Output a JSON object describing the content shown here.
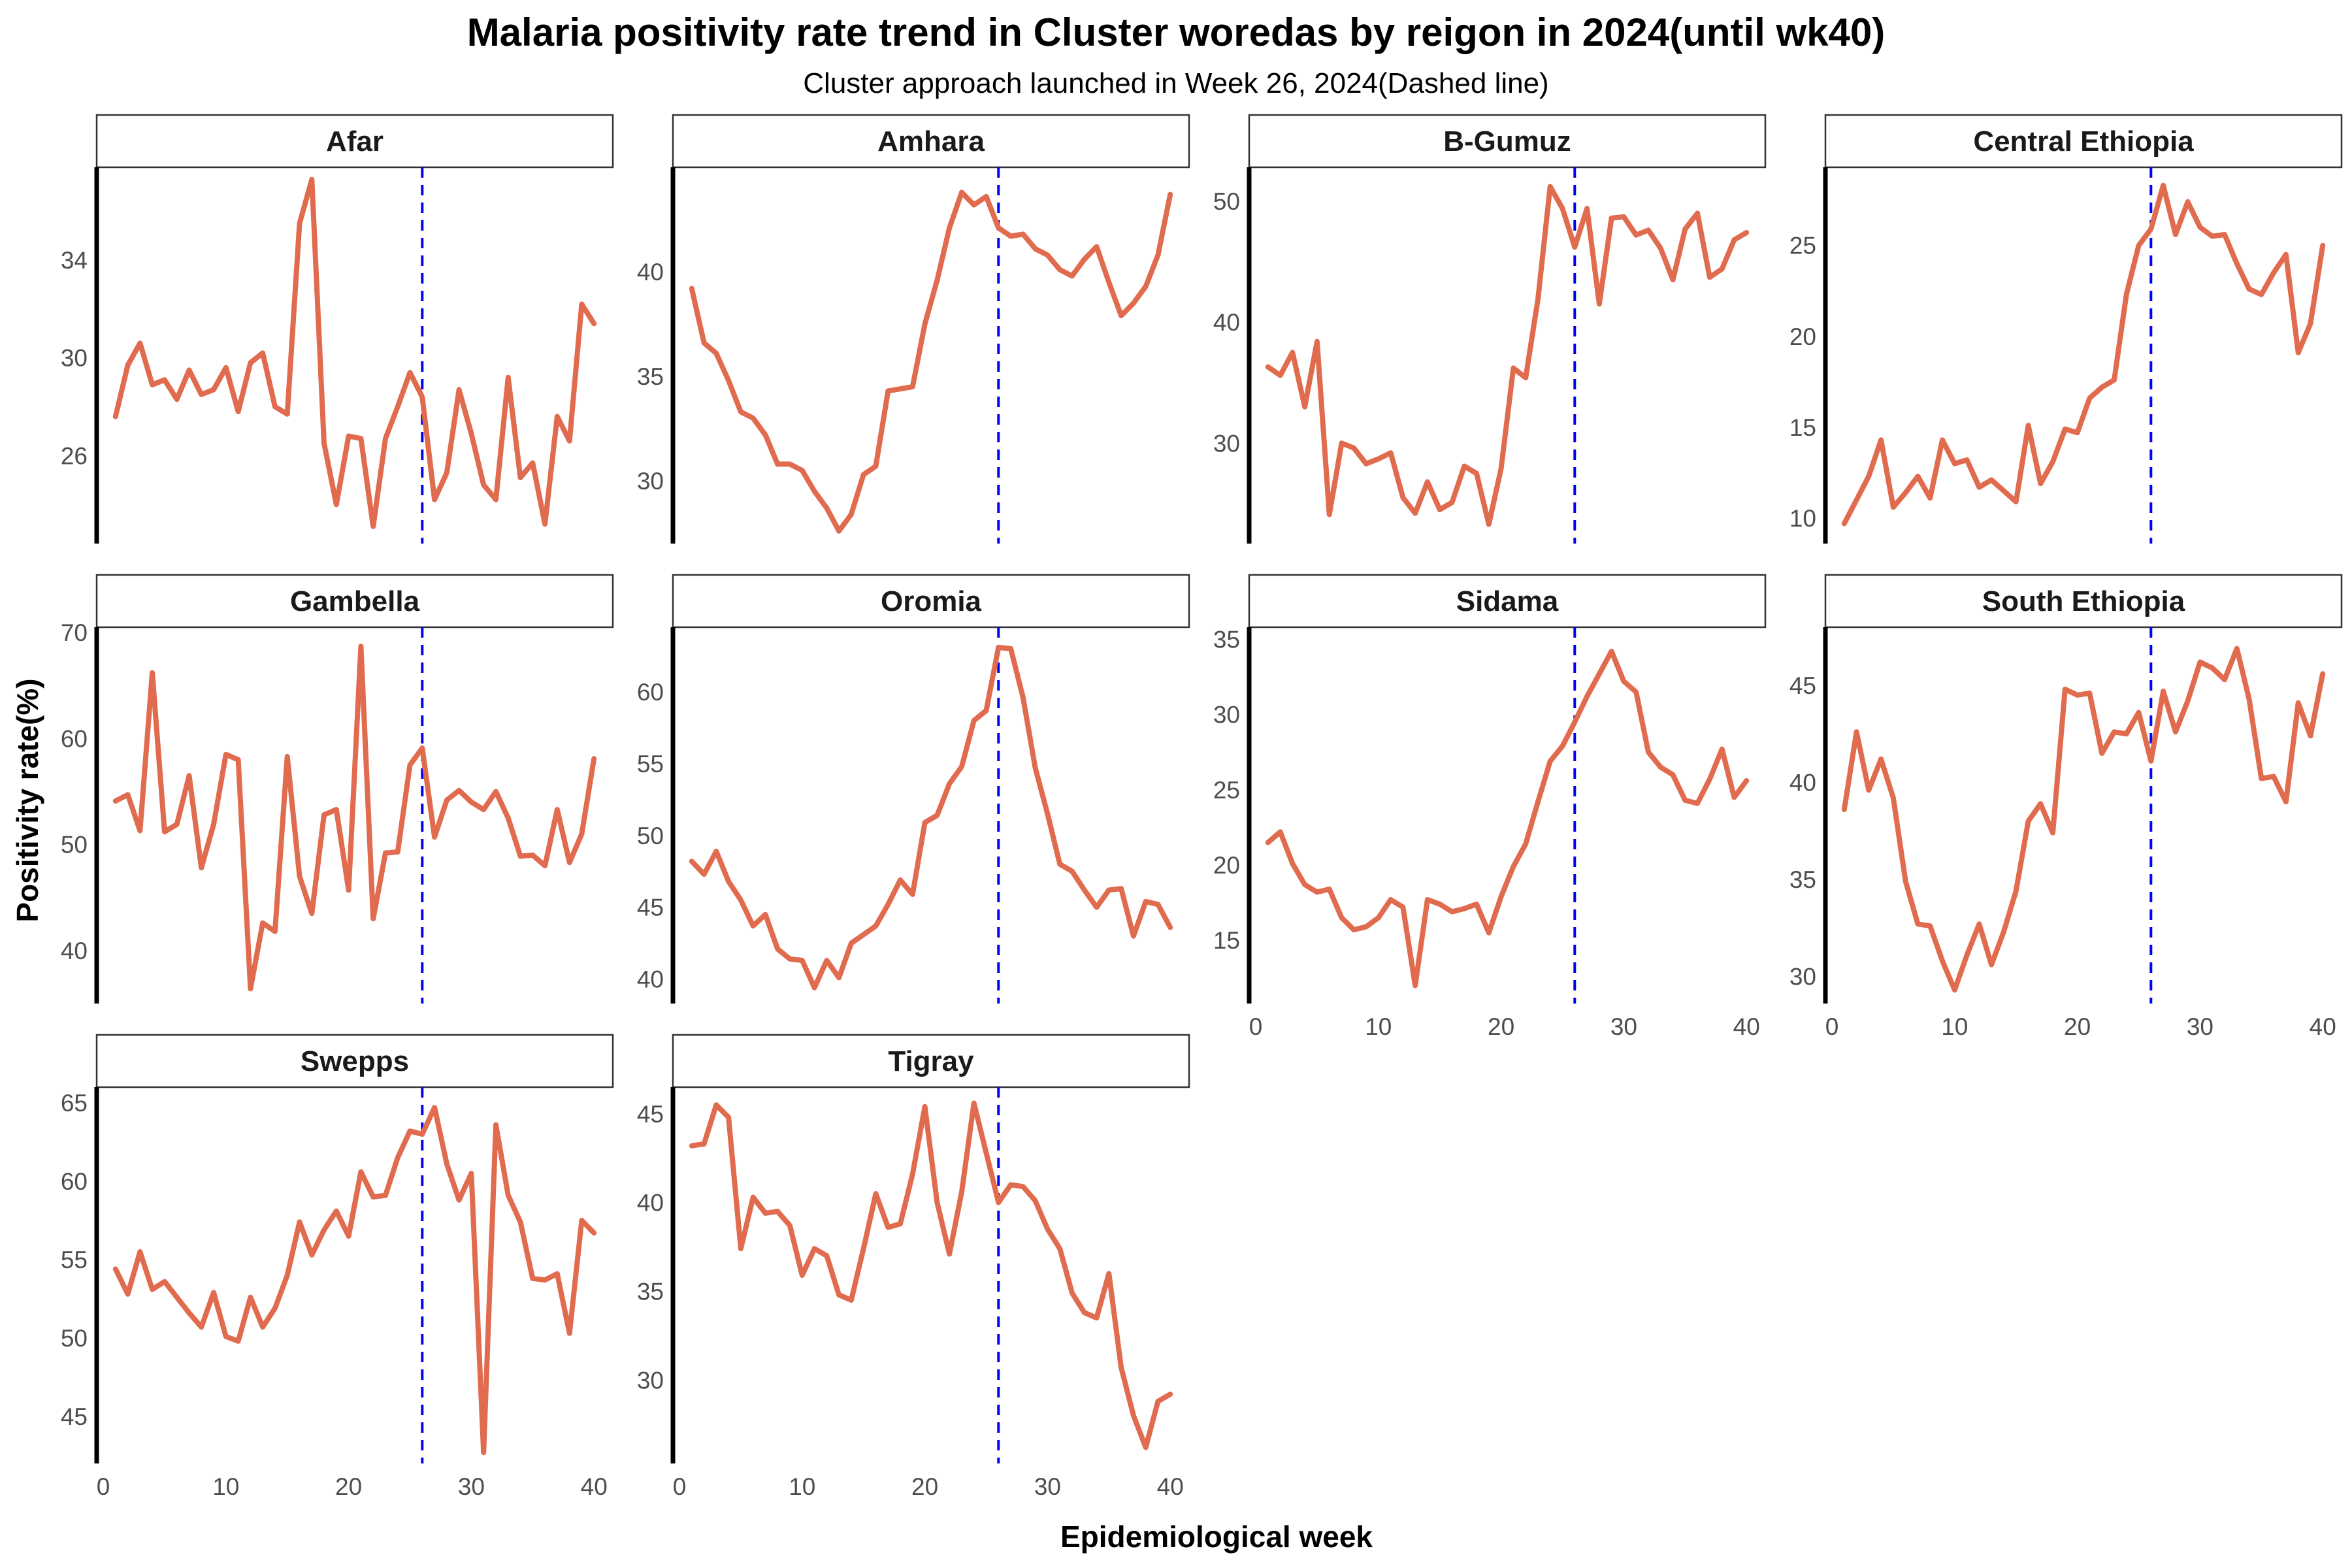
{
  "title": "Malaria positivity rate trend in Cluster woredas by reigon in 2024(until wk40)",
  "subtitle": "Cluster approach launched in Week 26, 2024(Dashed line)",
  "chart_data": {
    "type": "line",
    "title": "Malaria positivity rate trend in Cluster woredas by reigon in 2024(until wk40)",
    "subtitle": "Cluster approach launched in Week 26, 2024(Dashed line)",
    "xlabel": "Epidemiological week",
    "ylabel": "Positivity rate(%)",
    "line_color": "#E06B4E",
    "marker_color": "#0000FF",
    "marker_week": 26,
    "x": [
      1,
      2,
      3,
      4,
      5,
      6,
      7,
      8,
      9,
      10,
      11,
      12,
      13,
      14,
      15,
      16,
      17,
      18,
      19,
      20,
      21,
      22,
      23,
      24,
      25,
      26,
      27,
      28,
      29,
      30,
      31,
      32,
      33,
      34,
      35,
      36,
      37,
      38,
      39,
      40
    ],
    "xlim": [
      0,
      41
    ],
    "xticks": [
      0,
      10,
      20,
      30,
      40
    ],
    "panels": [
      {
        "name": "Afar",
        "ylim": [
          22.4,
          37.8
        ],
        "yticks": [
          26,
          30,
          34
        ],
        "values": [
          27.6,
          29.7,
          30.6,
          28.9,
          29.1,
          28.3,
          29.5,
          28.5,
          28.7,
          29.6,
          27.8,
          29.8,
          30.2,
          28.0,
          27.7,
          35.5,
          37.3,
          26.5,
          24.0,
          26.8,
          26.7,
          23.1,
          26.7,
          28.0,
          29.4,
          28.4,
          24.2,
          25.3,
          28.7,
          26.9,
          24.8,
          24.2,
          29.2,
          25.1,
          25.7,
          23.2,
          27.6,
          26.6,
          32.2,
          31.4
        ]
      },
      {
        "name": "Amhara",
        "ylim": [
          27.0,
          45.0
        ],
        "yticks": [
          30,
          35,
          40
        ],
        "values": [
          39.2,
          36.6,
          36.1,
          34.8,
          33.3,
          33.0,
          32.2,
          30.8,
          30.8,
          30.5,
          29.5,
          28.7,
          27.6,
          28.4,
          30.3,
          30.7,
          34.3,
          34.4,
          34.5,
          37.5,
          39.6,
          42.1,
          43.8,
          43.2,
          43.6,
          42.1,
          41.7,
          41.8,
          41.1,
          40.8,
          40.1,
          39.8,
          40.6,
          41.2,
          39.5,
          37.9,
          38.5,
          39.3,
          40.8,
          43.7
        ]
      },
      {
        "name": "B-Gumuz",
        "ylim": [
          21.7,
          52.8
        ],
        "yticks": [
          30,
          40,
          50
        ],
        "values": [
          36.3,
          35.6,
          37.5,
          33.0,
          38.4,
          24.1,
          30.0,
          29.6,
          28.3,
          28.7,
          29.2,
          25.5,
          24.2,
          26.8,
          24.5,
          25.1,
          28.1,
          27.5,
          23.3,
          27.9,
          36.2,
          35.4,
          41.9,
          51.2,
          49.4,
          46.2,
          49.4,
          41.5,
          48.6,
          48.7,
          47.2,
          47.6,
          46.1,
          43.5,
          47.7,
          49.0,
          43.7,
          44.4,
          46.8,
          47.4
        ]
      },
      {
        "name": "Central Ethiopia",
        "ylim": [
          8.6,
          29.3
        ],
        "yticks": [
          10,
          15,
          20,
          25
        ],
        "values": [
          9.7,
          11.0,
          12.3,
          14.3,
          10.6,
          11.4,
          12.3,
          11.1,
          14.3,
          13.0,
          13.2,
          11.7,
          12.1,
          11.5,
          10.9,
          15.1,
          11.9,
          13.1,
          14.9,
          14.7,
          16.6,
          17.2,
          17.6,
          22.3,
          25.0,
          25.9,
          28.3,
          25.6,
          27.4,
          26.0,
          25.5,
          25.6,
          24.0,
          22.6,
          22.3,
          23.5,
          24.5,
          19.1,
          20.7,
          25.0
        ]
      },
      {
        "name": "Gambella",
        "ylim": [
          35.0,
          70.5
        ],
        "yticks": [
          40,
          50,
          60,
          70
        ],
        "values": [
          54.1,
          54.7,
          51.3,
          66.2,
          51.2,
          51.9,
          56.5,
          47.8,
          51.9,
          58.5,
          58.0,
          36.4,
          42.6,
          41.8,
          58.3,
          47.0,
          43.5,
          52.8,
          53.3,
          45.7,
          68.7,
          43.0,
          49.2,
          49.3,
          57.5,
          59.1,
          50.7,
          54.2,
          55.1,
          54.0,
          53.3,
          55.0,
          52.5,
          48.9,
          49.0,
          48.0,
          53.3,
          48.3,
          51.0,
          58.1
        ]
      },
      {
        "name": "Oromia",
        "ylim": [
          38.3,
          64.5
        ],
        "yticks": [
          40,
          45,
          50,
          55,
          60
        ],
        "values": [
          48.2,
          47.3,
          48.9,
          46.8,
          45.5,
          43.7,
          44.5,
          42.1,
          41.4,
          41.3,
          39.4,
          41.3,
          40.1,
          42.5,
          43.1,
          43.7,
          45.2,
          46.9,
          45.9,
          50.9,
          51.4,
          53.6,
          54.8,
          58.0,
          58.7,
          63.1,
          63.0,
          59.6,
          54.7,
          51.5,
          48.0,
          47.5,
          46.2,
          45.0,
          46.2,
          46.3,
          43.0,
          45.4,
          45.2,
          43.6
        ]
      },
      {
        "name": "Sidama",
        "ylim": [
          10.8,
          35.8
        ],
        "yticks": [
          15,
          20,
          25,
          30,
          35
        ],
        "values": [
          21.5,
          22.2,
          20.1,
          18.7,
          18.2,
          18.4,
          16.5,
          15.7,
          15.9,
          16.5,
          17.7,
          17.2,
          12.0,
          17.7,
          17.4,
          16.9,
          17.1,
          17.4,
          15.5,
          17.9,
          19.9,
          21.4,
          24.2,
          26.9,
          27.9,
          29.5,
          31.2,
          32.7,
          34.2,
          32.2,
          31.5,
          27.5,
          26.5,
          26.0,
          24.3,
          24.1,
          25.7,
          27.7,
          24.5,
          25.6
        ]
      },
      {
        "name": "South Ethiopia",
        "ylim": [
          28.6,
          48.0
        ],
        "yticks": [
          30,
          35,
          40,
          45
        ],
        "values": [
          38.6,
          42.6,
          39.6,
          41.2,
          39.2,
          34.9,
          32.7,
          32.6,
          30.8,
          29.3,
          31.1,
          32.7,
          30.6,
          32.3,
          34.4,
          38.0,
          38.9,
          37.4,
          44.8,
          44.5,
          44.6,
          41.5,
          42.6,
          42.5,
          43.6,
          41.1,
          44.7,
          42.6,
          44.2,
          46.2,
          45.9,
          45.3,
          46.9,
          44.3,
          40.2,
          40.3,
          39.0,
          44.1,
          42.4,
          45.6
        ]
      },
      {
        "name": "Swepрs",
        "ylim": [
          42.0,
          66.0
        ],
        "yticks": [
          45,
          50,
          55,
          60,
          65
        ],
        "values": [
          54.4,
          52.8,
          55.5,
          53.1,
          53.6,
          52.6,
          51.6,
          50.7,
          52.9,
          50.1,
          49.8,
          52.6,
          50.7,
          51.9,
          54.0,
          57.4,
          55.3,
          56.9,
          58.1,
          56.5,
          60.6,
          59.0,
          59.1,
          61.5,
          63.2,
          63.0,
          64.7,
          61.1,
          58.8,
          60.5,
          42.7,
          63.6,
          59.1,
          57.4,
          53.8,
          53.7,
          54.1,
          50.3,
          57.5,
          56.7
        ]
      },
      {
        "name": "Tigray",
        "ylim": [
          25.3,
          46.5
        ],
        "yticks": [
          30,
          35,
          40,
          45
        ],
        "values": [
          43.2,
          43.3,
          45.5,
          44.8,
          37.4,
          40.3,
          39.4,
          39.5,
          38.7,
          35.9,
          37.4,
          37.0,
          34.8,
          34.5,
          37.4,
          40.5,
          38.6,
          38.8,
          41.6,
          45.4,
          40.0,
          37.1,
          40.6,
          45.6,
          42.8,
          40.0,
          41.0,
          40.9,
          40.1,
          38.5,
          37.4,
          34.9,
          33.8,
          33.5,
          36.0,
          30.7,
          28.0,
          26.2,
          28.8,
          29.2
        ]
      }
    ]
  }
}
